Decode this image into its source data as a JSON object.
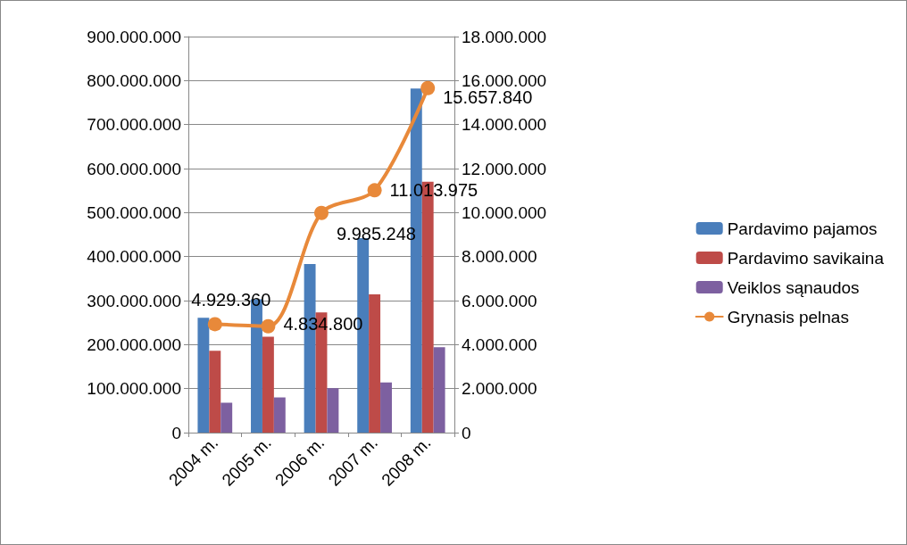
{
  "chart_data": {
    "type": "bar",
    "categories": [
      "2004 m.",
      "2005 m.",
      "2006 m.",
      "2007 m.",
      "2008 m."
    ],
    "series": [
      {
        "name": "Pardavimo pajamos",
        "color": "#4a7ebb",
        "values": [
          261000000,
          303000000,
          383000000,
          442000000,
          782000000
        ]
      },
      {
        "name": "Pardavimo savikaina",
        "color": "#be4b48",
        "values": [
          186000000,
          218000000,
          273000000,
          314000000,
          570000000
        ]
      },
      {
        "name": "Veiklos sąnaudos",
        "color": "#7d60a0",
        "values": [
          68000000,
          80000000,
          101000000,
          114000000,
          194000000
        ]
      },
      {
        "name": "Grynasis pelnas",
        "type": "line",
        "axis": "y2",
        "color": "#e8893a",
        "values": [
          4929360,
          4834800,
          9985248,
          11013975,
          15657840
        ],
        "value_labels": [
          "4.929.360",
          "4.834.800",
          "9.985.248",
          "11.013.975",
          "15.657.840"
        ]
      }
    ],
    "ylim": [
      0,
      900000000
    ],
    "yticks": [
      {
        "value": 0,
        "label": "0"
      },
      {
        "value": 100000000,
        "label": "100.000.000"
      },
      {
        "value": 200000000,
        "label": "200.000.000"
      },
      {
        "value": 300000000,
        "label": "300.000.000"
      },
      {
        "value": 400000000,
        "label": "400.000.000"
      },
      {
        "value": 500000000,
        "label": "500.000.000"
      },
      {
        "value": 600000000,
        "label": "600.000.000"
      },
      {
        "value": 700000000,
        "label": "700.000.000"
      },
      {
        "value": 800000000,
        "label": "800.000.000"
      },
      {
        "value": 900000000,
        "label": "900.000.000"
      }
    ],
    "y2lim": [
      0,
      18000000
    ],
    "y2ticks": [
      {
        "value": 0,
        "label": "0"
      },
      {
        "value": 2000000,
        "label": "2.000.000"
      },
      {
        "value": 4000000,
        "label": "4.000.000"
      },
      {
        "value": 6000000,
        "label": "6.000.000"
      },
      {
        "value": 8000000,
        "label": "8.000.000"
      },
      {
        "value": 10000000,
        "label": "10.000.000"
      },
      {
        "value": 12000000,
        "label": "12.000.000"
      },
      {
        "value": 14000000,
        "label": "14.000.000"
      },
      {
        "value": 16000000,
        "label": "16.000.000"
      },
      {
        "value": 18000000,
        "label": "18.000.000"
      }
    ],
    "grid": "y",
    "legend": "right",
    "marker": "circle"
  }
}
